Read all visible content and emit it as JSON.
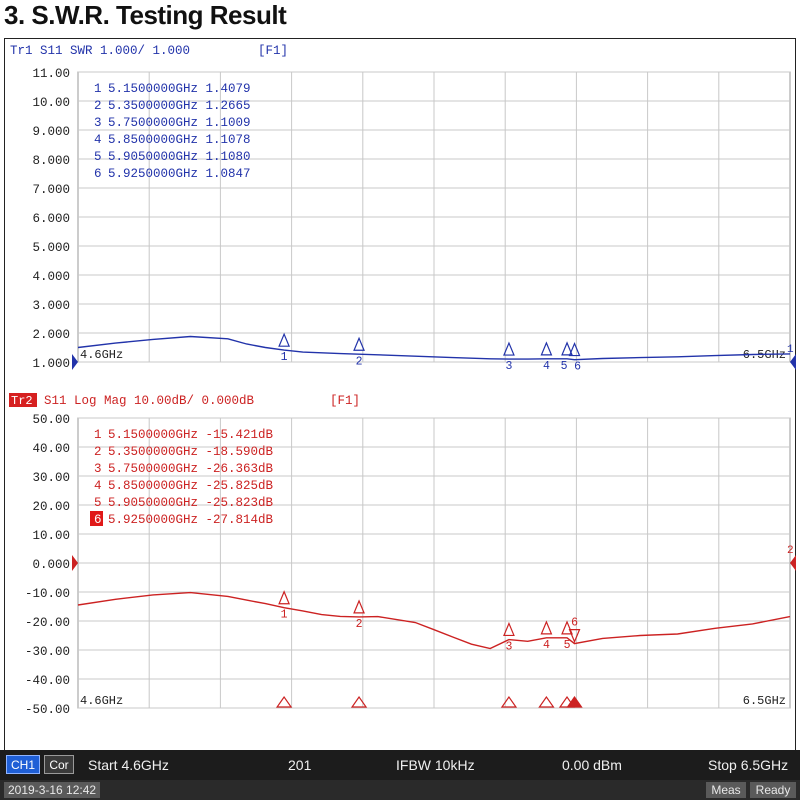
{
  "heading": "3. S.W.R. Testing Result",
  "top_trace": {
    "header": "Tr1 S11 SWR 1.000/ 1.000",
    "flag": "[F1]",
    "color": "#2233aa",
    "y_ticks": [
      "11.00",
      "10.00",
      "9.000",
      "8.000",
      "7.000",
      "6.000",
      "5.000",
      "4.000",
      "3.000",
      "2.000",
      "1.000"
    ],
    "x_start_label": "4.6GHz",
    "x_end_label": "6.5GHz",
    "markers": [
      {
        "id": "1",
        "freq": "5.1500000GHz",
        "value": "1.4079"
      },
      {
        "id": "2",
        "freq": "5.3500000GHz",
        "value": "1.2665"
      },
      {
        "id": "3",
        "freq": "5.7500000GHz",
        "value": "1.1009"
      },
      {
        "id": "4",
        "freq": "5.8500000GHz",
        "value": "1.1078"
      },
      {
        "id": "5",
        "freq": "5.9050000GHz",
        "value": "1.1080"
      },
      {
        "id": "6",
        "freq": "5.9250000GHz",
        "value": "1.0847"
      }
    ],
    "right_ref_label": "1"
  },
  "bottom_trace": {
    "badge": "Tr2",
    "header": "S11 Log Mag 10.00dB/ 0.000dB",
    "flag": "[F1]",
    "color": "#cc2222",
    "y_ticks": [
      "50.00",
      "40.00",
      "30.00",
      "20.00",
      "10.00",
      "0.000",
      "-10.00",
      "-20.00",
      "-30.00",
      "-40.00",
      "-50.00"
    ],
    "x_start_label": "4.6GHz",
    "x_end_label": "6.5GHz",
    "markers": [
      {
        "id": "1",
        "freq": "5.1500000GHz",
        "value": "-15.421dB"
      },
      {
        "id": "2",
        "freq": "5.3500000GHz",
        "value": "-18.590dB"
      },
      {
        "id": "3",
        "freq": "5.7500000GHz",
        "value": "-26.363dB"
      },
      {
        "id": "4",
        "freq": "5.8500000GHz",
        "value": "-25.825dB"
      },
      {
        "id": "5",
        "freq": "5.9050000GHz",
        "value": "-25.823dB"
      },
      {
        "id": "6",
        "freq": "5.9250000GHz",
        "value": "-27.814dB"
      }
    ],
    "active_marker": "6",
    "right_ref_label": "2"
  },
  "status": {
    "ch_button": "CH1",
    "cor_button": "Cor",
    "start": "Start 4.6GHz",
    "points": "201",
    "ifbw": "IFBW 10kHz",
    "power": "0.00 dBm",
    "stop": "Stop 6.5GHz",
    "datetime": "2019-3-16 12:42",
    "meas": "Meas",
    "ready": "Ready"
  },
  "chart_data": [
    {
      "type": "line",
      "title": "Tr1 S11 SWR 1.000/ 1.000",
      "xlabel": "",
      "ylabel": "",
      "xlim": [
        4.6,
        6.5
      ],
      "ylim": [
        1.0,
        11.0
      ],
      "grid": true,
      "series": [
        {
          "name": "Tr1 S11 SWR",
          "x": [
            4.6,
            4.7,
            4.8,
            4.9,
            5.0,
            5.05,
            5.1,
            5.15,
            5.2,
            5.3,
            5.35,
            5.4,
            5.5,
            5.6,
            5.7,
            5.75,
            5.8,
            5.85,
            5.905,
            5.925,
            6.0,
            6.1,
            6.2,
            6.3,
            6.4,
            6.5
          ],
          "y": [
            1.5,
            1.65,
            1.78,
            1.88,
            1.8,
            1.62,
            1.5,
            1.41,
            1.34,
            1.29,
            1.27,
            1.25,
            1.2,
            1.15,
            1.11,
            1.1,
            1.1,
            1.11,
            1.11,
            1.08,
            1.12,
            1.15,
            1.18,
            1.22,
            1.26,
            1.28
          ]
        }
      ]
    },
    {
      "type": "line",
      "title": "S11 Log Mag 10.00dB/ 0.000dB",
      "xlabel": "",
      "ylabel": "",
      "xlim": [
        4.6,
        6.5
      ],
      "ylim": [
        -50,
        50
      ],
      "grid": true,
      "series": [
        {
          "name": "Tr2 S11 Log Mag",
          "x": [
            4.6,
            4.7,
            4.8,
            4.9,
            5.0,
            5.05,
            5.1,
            5.15,
            5.2,
            5.25,
            5.3,
            5.35,
            5.4,
            5.5,
            5.55,
            5.6,
            5.65,
            5.7,
            5.75,
            5.8,
            5.85,
            5.905,
            5.925,
            6.0,
            6.1,
            6.2,
            6.3,
            6.4,
            6.5
          ],
          "y": [
            -14.5,
            -12.5,
            -11,
            -10.2,
            -11.5,
            -12.8,
            -14,
            -15.4,
            -16.5,
            -17.8,
            -18.4,
            -18.6,
            -18.5,
            -20.5,
            -23,
            -25.5,
            -28,
            -29.5,
            -26.4,
            -27,
            -25.8,
            -25.8,
            -27.8,
            -26,
            -25,
            -24.5,
            -22.5,
            -21,
            -18.5
          ]
        }
      ]
    }
  ]
}
